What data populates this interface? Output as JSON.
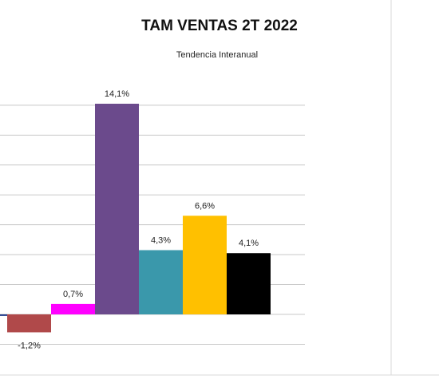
{
  "chart_data": {
    "type": "bar",
    "title": "TAM VENTAS 2T 2022",
    "subtitle": "Tendencia Interanual",
    "xlabel": "",
    "ylabel": "",
    "ylim": [
      -2,
      14
    ],
    "grid": true,
    "legend": "none",
    "categories": [
      "",
      "",
      "",
      "",
      "",
      "",
      ""
    ],
    "values": [
      -0.1,
      -1.2,
      0.7,
      14.1,
      4.3,
      6.6,
      4.1
    ],
    "data_labels": [
      "",
      "-1,2%",
      "0,7%",
      "14,1%",
      "4,3%",
      "6,6%",
      "4,1%"
    ],
    "colors": [
      "#1f3a8a",
      "#b0494a",
      "#ff00ff",
      "#6b4a8c",
      "#3a98ab",
      "#ffc000",
      "#000000"
    ]
  }
}
